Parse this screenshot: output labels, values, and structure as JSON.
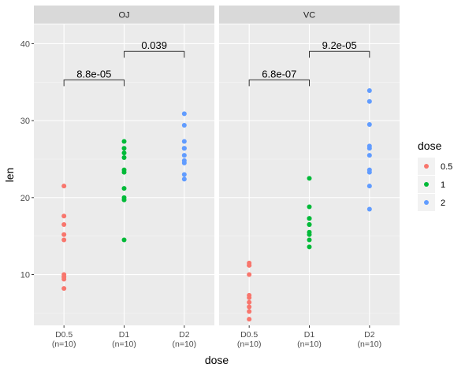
{
  "chart_data": {
    "type": "scatter",
    "xlabel": "dose",
    "ylabel": "len",
    "ylim": [
      3.4,
      42.5
    ],
    "yticks": [
      10,
      20,
      30,
      40
    ],
    "categories": [
      "D0.5\n(n=10)",
      "D1\n(n=10)",
      "D2\n(n=10)"
    ],
    "grid": true,
    "legend": {
      "title": "dose",
      "placement": "right",
      "entries": [
        {
          "label": "0.5",
          "color": "#F8766D"
        },
        {
          "label": "1",
          "color": "#00BA38"
        },
        {
          "label": "2",
          "color": "#619CFF"
        }
      ]
    },
    "panels": [
      {
        "title": "OJ",
        "series": [
          {
            "name": "0.5",
            "category": 0,
            "values": [
              15.2,
              21.5,
              17.6,
              9.7,
              14.5,
              10.0,
              8.2,
              9.4,
              16.5,
              9.7
            ]
          },
          {
            "name": "1",
            "category": 1,
            "values": [
              19.7,
              23.3,
              23.6,
              26.4,
              20.0,
              25.2,
              25.8,
              21.2,
              14.5,
              27.3
            ]
          },
          {
            "name": "2",
            "category": 2,
            "values": [
              25.5,
              26.4,
              22.4,
              24.5,
              24.8,
              30.9,
              26.4,
              27.3,
              29.4,
              23.0
            ]
          }
        ],
        "comparisons": [
          {
            "from": 0,
            "to": 1,
            "label": "8.8e-05",
            "y": 35.3
          },
          {
            "from": 1,
            "to": 2,
            "label": "0.039",
            "y": 39.0
          }
        ]
      },
      {
        "title": "VC",
        "series": [
          {
            "name": "0.5",
            "category": 0,
            "values": [
              4.2,
              11.5,
              7.3,
              5.8,
              6.4,
              10.0,
              11.2,
              11.2,
              5.2,
              7.0
            ]
          },
          {
            "name": "1",
            "category": 1,
            "values": [
              16.5,
              16.5,
              15.2,
              17.3,
              22.5,
              17.3,
              13.6,
              14.5,
              18.8,
              15.5
            ]
          },
          {
            "name": "2",
            "category": 2,
            "values": [
              23.6,
              18.5,
              33.9,
              25.5,
              26.4,
              32.5,
              26.7,
              21.5,
              23.3,
              29.5
            ]
          }
        ],
        "comparisons": [
          {
            "from": 0,
            "to": 1,
            "label": "6.8e-07",
            "y": 35.3
          },
          {
            "from": 1,
            "to": 2,
            "label": "9.2e-05",
            "y": 39.0
          }
        ]
      }
    ]
  }
}
